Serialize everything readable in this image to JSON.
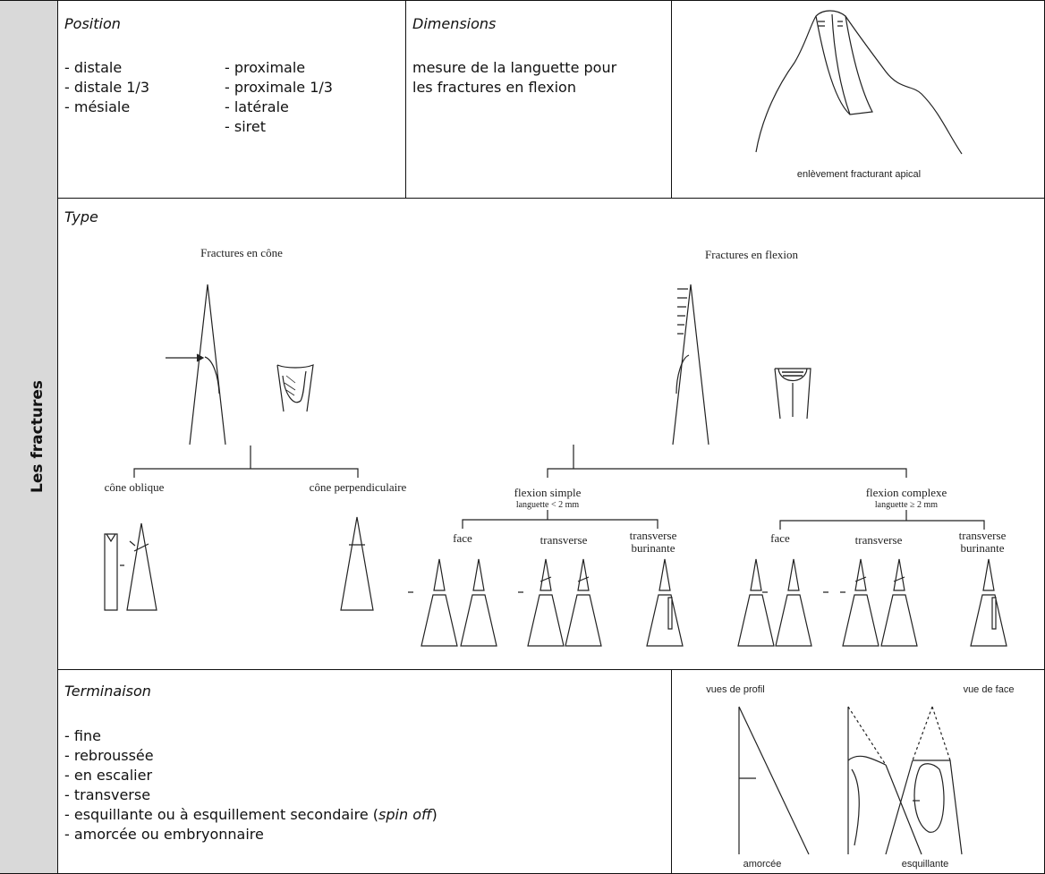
{
  "side_label": "Les fractures",
  "position": {
    "heading": "Position",
    "left_items": [
      "- distale",
      "- distale 1/3",
      "- mésiale"
    ],
    "right_items": [
      "- proximale",
      "- proximale 1/3",
      "- latérale",
      "- siret"
    ]
  },
  "dimensions": {
    "heading": "Dimensions",
    "lines": [
      "mesure de la languette pour",
      "les fractures en flexion"
    ]
  },
  "apical_figure": {
    "caption": "enlèvement fracturant apical"
  },
  "type": {
    "heading": "Type",
    "diagram": {
      "cone_title": "Fractures en cône",
      "flexion_title": "Fractures en flexion",
      "cone_labels": [
        "cône oblique",
        "cône perpendiculaire"
      ],
      "flexion_simple": {
        "title": "flexion simple",
        "subtitle": "languette < 2 mm",
        "labels": [
          "face",
          "transverse",
          "transverse",
          "burinante"
        ]
      },
      "flexion_complexe": {
        "title": "flexion complexe",
        "subtitle": "languette ≥ 2 mm",
        "labels": [
          "face",
          "transverse",
          "transverse",
          "burinante"
        ]
      }
    }
  },
  "terminaison": {
    "heading": "Terminaison",
    "items": [
      "- fine",
      "- rebroussée",
      "- en escalier",
      "- transverse",
      "- amorcée ou embryonnaire"
    ],
    "spin_off_item": {
      "before": "- esquillante ou à esquillement secondaire (",
      "italic": "spin off",
      "after": ")"
    }
  },
  "termination_figure": {
    "labels": [
      "vues de profil",
      "vue de face",
      "amorcée",
      "esquillante"
    ]
  }
}
